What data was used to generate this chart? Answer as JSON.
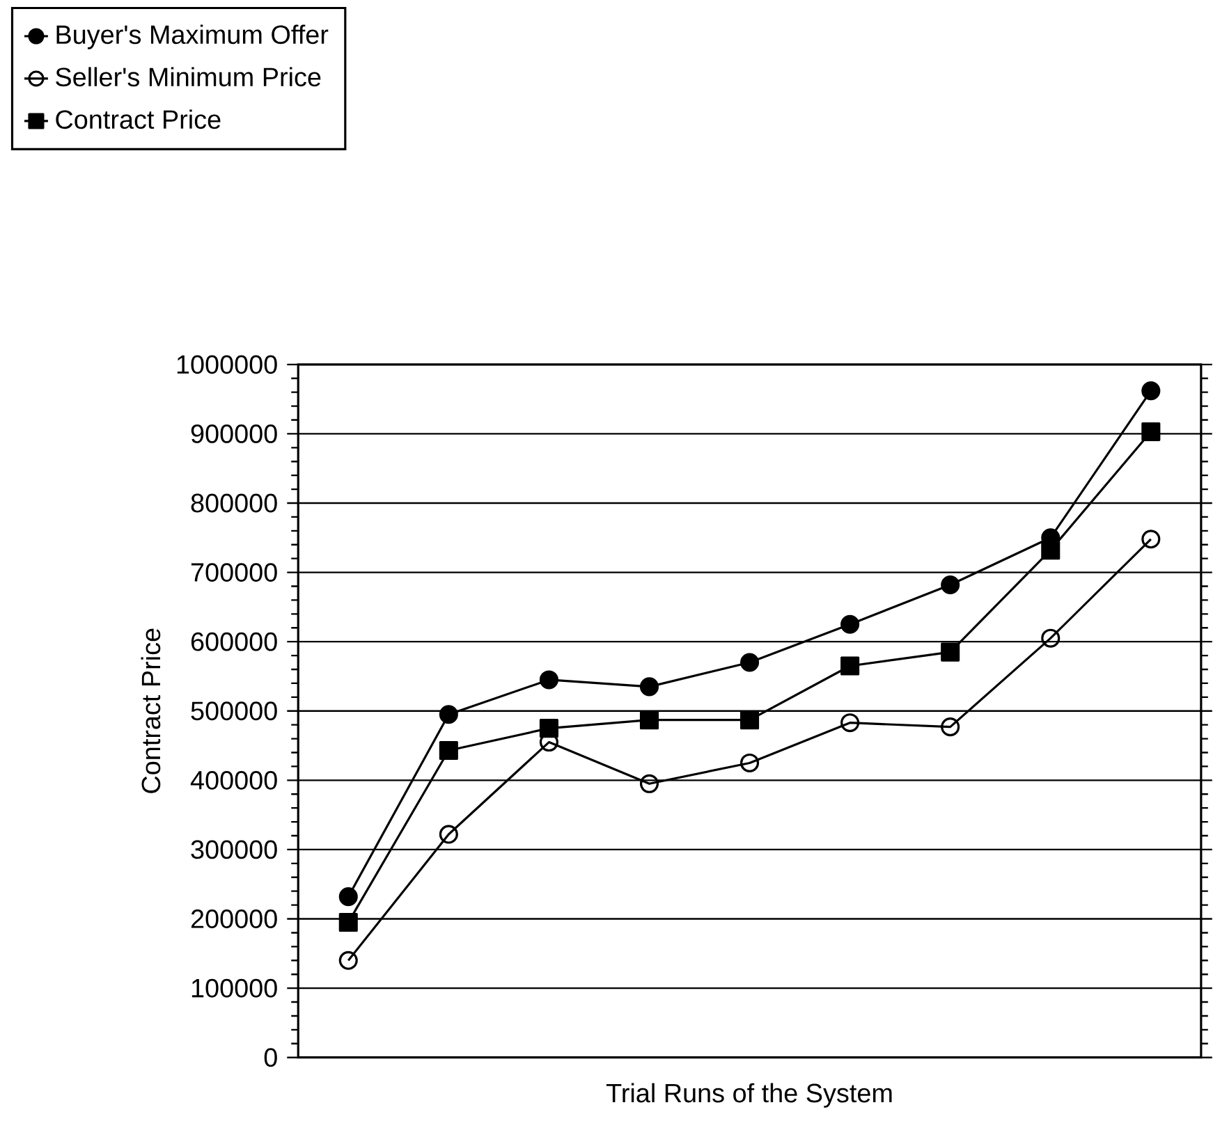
{
  "chart_data": {
    "type": "line",
    "xlabel": "Trial Runs of the System",
    "ylabel": "Contract Price",
    "categories": [
      null,
      null,
      null,
      null,
      null,
      null,
      null,
      null,
      null
    ],
    "series": [
      {
        "name": "Buyer's Maximum Offer",
        "color": "#000000",
        "marker": "circle",
        "values": [
          232000,
          495000,
          545000,
          535000,
          570000,
          625000,
          682000,
          750000,
          962000
        ]
      },
      {
        "name": "Seller's Minimum Price",
        "color": "#000000",
        "marker": "open circle",
        "values": [
          140000,
          322000,
          455000,
          395000,
          425000,
          483000,
          477000,
          605000,
          748000
        ]
      },
      {
        "name": "Contract Price",
        "color": "#000000",
        "marker": "square",
        "values": [
          195000,
          443000,
          475000,
          487000,
          487000,
          565000,
          585000,
          732000,
          903000
        ]
      }
    ],
    "ylim": [
      0,
      1000000
    ],
    "yticks": [
      0,
      100000,
      200000,
      300000,
      400000,
      500000,
      600000,
      700000,
      800000,
      900000,
      1000000
    ],
    "grid": true,
    "legend": "top left",
    "line_style": "solid"
  }
}
